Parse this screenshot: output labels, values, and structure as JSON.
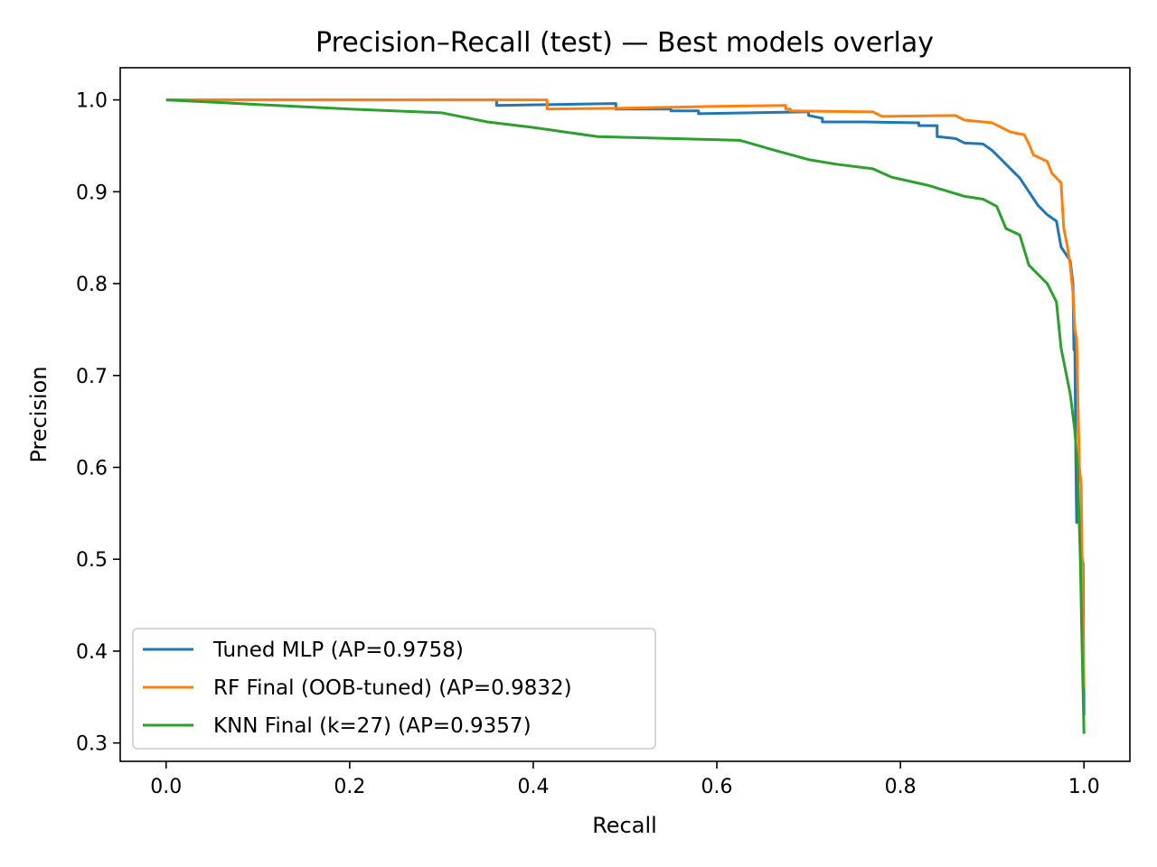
{
  "chart_data": {
    "type": "line",
    "title": "Precision–Recall (test) — Best models overlay",
    "xlabel": "Recall",
    "ylabel": "Precision",
    "xlim": [
      -0.05,
      1.05
    ],
    "ylim": [
      0.28,
      1.035
    ],
    "xticks": [
      0.0,
      0.2,
      0.4,
      0.6,
      0.8,
      1.0
    ],
    "xtick_labels": [
      "0.0",
      "0.2",
      "0.4",
      "0.6",
      "0.8",
      "1.0"
    ],
    "yticks": [
      0.3,
      0.4,
      0.5,
      0.6,
      0.7,
      0.8,
      0.9,
      1.0
    ],
    "ytick_labels": [
      "0.3",
      "0.4",
      "0.5",
      "0.6",
      "0.7",
      "0.8",
      "0.9",
      "1.0"
    ],
    "grid": false,
    "legend_position": "lower-left",
    "series": [
      {
        "name": "Tuned MLP (AP=0.9758)",
        "color": "#1f77b4",
        "points": [
          [
            0.0,
            1.0
          ],
          [
            0.36,
            1.0
          ],
          [
            0.36,
            0.994
          ],
          [
            0.49,
            0.996
          ],
          [
            0.49,
            0.99
          ],
          [
            0.55,
            0.99
          ],
          [
            0.55,
            0.988
          ],
          [
            0.58,
            0.988
          ],
          [
            0.58,
            0.985
          ],
          [
            0.7,
            0.987
          ],
          [
            0.7,
            0.983
          ],
          [
            0.715,
            0.98
          ],
          [
            0.715,
            0.976
          ],
          [
            0.76,
            0.976
          ],
          [
            0.82,
            0.975
          ],
          [
            0.82,
            0.972
          ],
          [
            0.84,
            0.972
          ],
          [
            0.84,
            0.96
          ],
          [
            0.86,
            0.958
          ],
          [
            0.87,
            0.953
          ],
          [
            0.89,
            0.952
          ],
          [
            0.9,
            0.945
          ],
          [
            0.91,
            0.935
          ],
          [
            0.92,
            0.925
          ],
          [
            0.93,
            0.915
          ],
          [
            0.94,
            0.9
          ],
          [
            0.95,
            0.885
          ],
          [
            0.96,
            0.875
          ],
          [
            0.97,
            0.868
          ],
          [
            0.975,
            0.84
          ],
          [
            0.985,
            0.825
          ],
          [
            0.988,
            0.8
          ],
          [
            0.989,
            0.728
          ],
          [
            0.99,
            0.74
          ],
          [
            0.991,
            0.62
          ],
          [
            0.992,
            0.54
          ],
          [
            0.995,
            0.55
          ],
          [
            0.998,
            0.5
          ],
          [
            0.999,
            0.495
          ],
          [
            1.0,
            0.33
          ]
        ]
      },
      {
        "name": "RF Final (OOB-tuned) (AP=0.9832)",
        "color": "#ff7f0e",
        "points": [
          [
            0.0,
            1.0
          ],
          [
            0.415,
            1.0
          ],
          [
            0.415,
            0.99
          ],
          [
            0.5,
            0.991
          ],
          [
            0.6,
            0.993
          ],
          [
            0.675,
            0.994
          ],
          [
            0.675,
            0.99
          ],
          [
            0.68,
            0.99
          ],
          [
            0.68,
            0.988
          ],
          [
            0.77,
            0.987
          ],
          [
            0.78,
            0.982
          ],
          [
            0.86,
            0.983
          ],
          [
            0.87,
            0.978
          ],
          [
            0.9,
            0.975
          ],
          [
            0.91,
            0.97
          ],
          [
            0.92,
            0.965
          ],
          [
            0.935,
            0.962
          ],
          [
            0.94,
            0.952
          ],
          [
            0.945,
            0.94
          ],
          [
            0.96,
            0.933
          ],
          [
            0.965,
            0.92
          ],
          [
            0.975,
            0.91
          ],
          [
            0.978,
            0.86
          ],
          [
            0.982,
            0.84
          ],
          [
            0.985,
            0.82
          ],
          [
            0.988,
            0.79
          ],
          [
            0.99,
            0.75
          ],
          [
            0.992,
            0.74
          ],
          [
            0.995,
            0.6
          ],
          [
            0.997,
            0.58
          ],
          [
            0.998,
            0.5
          ],
          [
            1.0,
            0.36
          ]
        ]
      },
      {
        "name": "KNN Final (k=27) (AP=0.9357)",
        "color": "#2ca02c",
        "points": [
          [
            0.0,
            1.0
          ],
          [
            0.1,
            0.995
          ],
          [
            0.2,
            0.99
          ],
          [
            0.3,
            0.986
          ],
          [
            0.35,
            0.976
          ],
          [
            0.4,
            0.97
          ],
          [
            0.47,
            0.96
          ],
          [
            0.55,
            0.958
          ],
          [
            0.625,
            0.956
          ],
          [
            0.66,
            0.946
          ],
          [
            0.7,
            0.935
          ],
          [
            0.73,
            0.93
          ],
          [
            0.77,
            0.925
          ],
          [
            0.79,
            0.916
          ],
          [
            0.83,
            0.907
          ],
          [
            0.87,
            0.895
          ],
          [
            0.89,
            0.892
          ],
          [
            0.905,
            0.884
          ],
          [
            0.915,
            0.86
          ],
          [
            0.93,
            0.853
          ],
          [
            0.94,
            0.82
          ],
          [
            0.96,
            0.8
          ],
          [
            0.97,
            0.78
          ],
          [
            0.975,
            0.73
          ],
          [
            0.985,
            0.68
          ],
          [
            0.99,
            0.64
          ],
          [
            0.993,
            0.6
          ],
          [
            0.996,
            0.5
          ],
          [
            0.998,
            0.4
          ],
          [
            1.0,
            0.31
          ]
        ]
      }
    ]
  }
}
